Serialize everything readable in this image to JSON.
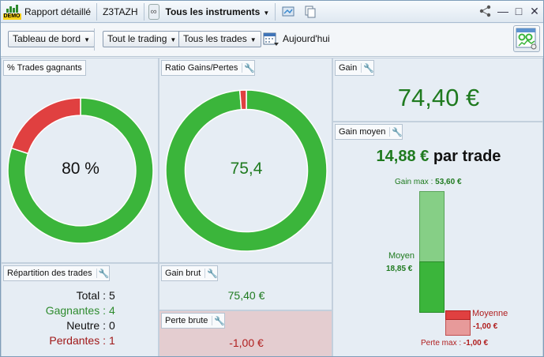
{
  "titlebar": {
    "demo_tag": "DEMO",
    "report": "Rapport détaillé",
    "account": "Z3TAZH",
    "instruments": "Tous les instruments"
  },
  "toolbar": {
    "board": "Tableau de bord",
    "trading": "Tout le trading",
    "trades": "Tous les trades",
    "today": "Aujourd'hui"
  },
  "panels": {
    "win_pct": {
      "title": "% Trades gagnants",
      "value": "80 %",
      "win_fraction": 0.8
    },
    "ratio": {
      "title": "Ratio Gains/Pertes",
      "value": "75,4",
      "gain_fraction": 0.987
    },
    "gain": {
      "title": "Gain",
      "value": "74,40 €"
    },
    "avg_gain": {
      "title": "Gain moyen",
      "value": "14,88 €",
      "suffix": "par trade",
      "max_label": "Gain max :",
      "max_value": "53,60 €",
      "moyen_label": "Moyen",
      "moyen_value": "18,85 €",
      "loss_moy_label": "Moyenne",
      "loss_moy_value": "-1,00 €",
      "loss_max_label": "Perte max :",
      "loss_max_value": "-1,00 €"
    },
    "repartition": {
      "title": "Répartition des trades",
      "rows": [
        {
          "label": "Total :",
          "value": "5",
          "color": "#111111"
        },
        {
          "label": "Gagnantes :",
          "value": "4",
          "color": "#2e8b2e"
        },
        {
          "label": "Neutre :",
          "value": "0",
          "color": "#111111"
        },
        {
          "label": "Perdantes :",
          "value": "1",
          "color": "#a01818"
        }
      ]
    },
    "gross_gain": {
      "title": "Gain brut",
      "value": "75,40 €"
    },
    "gross_loss": {
      "title": "Perte brute",
      "value": "-1,00 €"
    }
  },
  "colors": {
    "green": "#3bb53b",
    "red": "#e04040",
    "text_green": "#1f7a1f",
    "text_red": "#b01e1e"
  }
}
